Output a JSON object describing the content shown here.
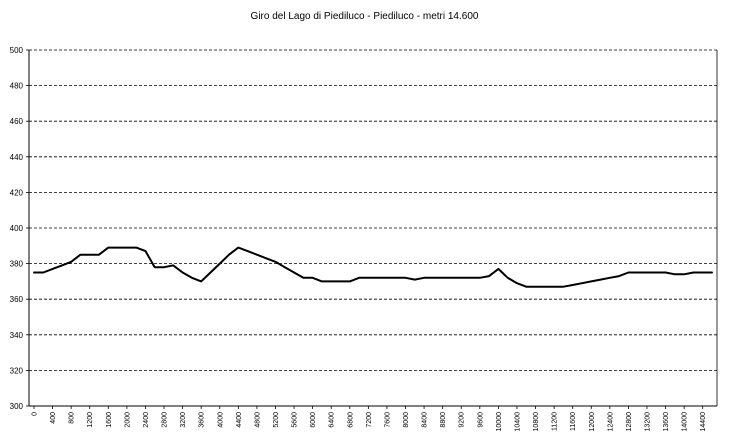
{
  "chart_data": {
    "type": "line",
    "title": "Giro del Lago di Piediluco - Piediluco - metri 14.600",
    "xlabel": "",
    "ylabel": "",
    "ylim": [
      300,
      500
    ],
    "yticks": [
      300,
      320,
      340,
      360,
      380,
      400,
      420,
      440,
      460,
      480,
      500
    ],
    "xticks": [
      0,
      400,
      800,
      1200,
      1600,
      2000,
      2400,
      2800,
      3200,
      3600,
      4000,
      4400,
      4800,
      5200,
      5600,
      6000,
      6400,
      6800,
      7200,
      7600,
      8000,
      8400,
      8800,
      9200,
      9600,
      10000,
      10400,
      10800,
      11200,
      11600,
      12000,
      12400,
      12800,
      13200,
      13600,
      14000,
      14400
    ],
    "xlim": [
      0,
      14600
    ],
    "grid": "horizontal dashed",
    "series": [
      {
        "x": [
          0,
          200,
          400,
          600,
          800,
          1000,
          1200,
          1400,
          1600,
          1800,
          2000,
          2200,
          2400,
          2600,
          2800,
          3000,
          3200,
          3400,
          3600,
          3800,
          4000,
          4200,
          4400,
          4600,
          4800,
          5000,
          5200,
          5400,
          5600,
          5800,
          6000,
          6200,
          6400,
          6600,
          6800,
          7000,
          7200,
          7400,
          7600,
          7800,
          8000,
          8200,
          8400,
          8600,
          8800,
          9000,
          9200,
          9400,
          9600,
          9800,
          10000,
          10200,
          10400,
          10600,
          10800,
          11000,
          11200,
          11400,
          11600,
          11800,
          12000,
          12200,
          12400,
          12600,
          12800,
          13000,
          13200,
          13400,
          13600,
          13800,
          14000,
          14200,
          14400,
          14600
        ],
        "values": [
          375,
          375,
          377,
          379,
          381,
          385,
          385,
          385,
          389,
          389,
          389,
          389,
          387,
          378,
          378,
          379,
          375,
          372,
          370,
          375,
          380,
          385,
          389,
          387,
          385,
          383,
          381,
          378,
          375,
          372,
          372,
          370,
          370,
          370,
          370,
          372,
          372,
          372,
          372,
          372,
          372,
          371,
          372,
          372,
          372,
          372,
          372,
          372,
          372,
          373,
          377,
          372,
          369,
          367,
          367,
          367,
          367,
          367,
          368,
          369,
          370,
          371,
          372,
          373,
          375,
          375,
          375,
          375,
          375,
          374,
          374,
          375,
          375,
          375
        ]
      }
    ]
  },
  "colors": {
    "line": "#000000",
    "grid": "#000000",
    "background": "#ffffff"
  }
}
